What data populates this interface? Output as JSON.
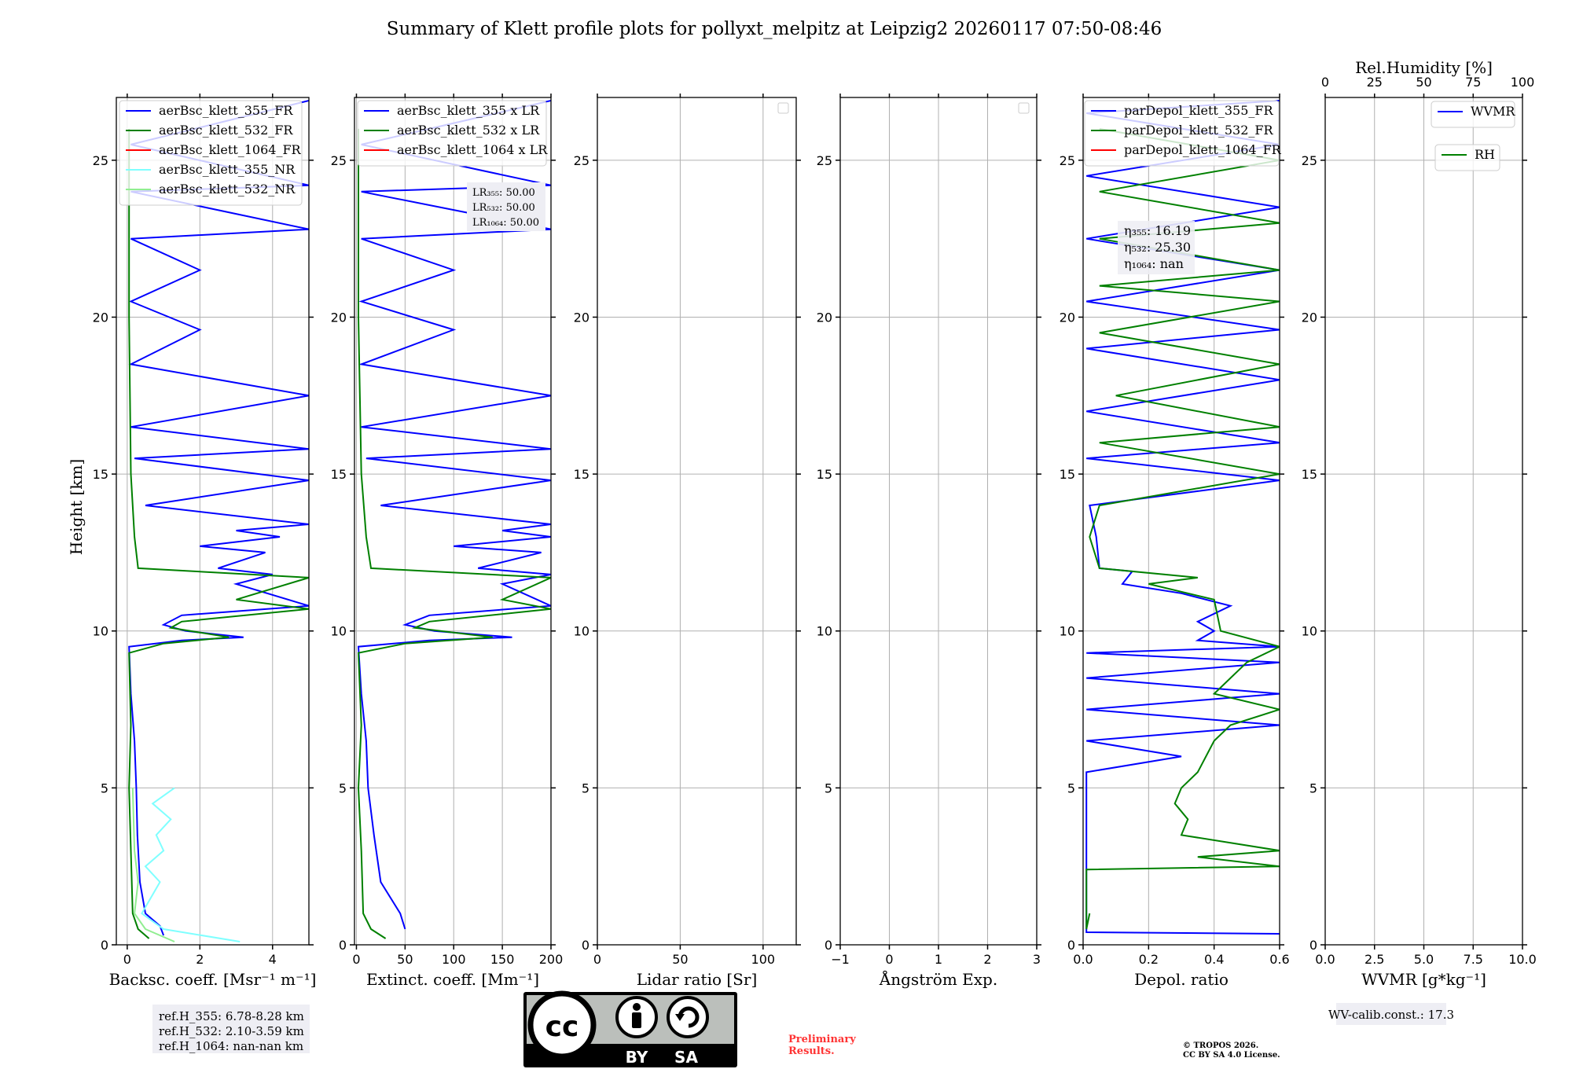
{
  "title": "Summary of Klett profile plots for pollyxt_melpitz at Leipzig2 20260117 07:50-08:46",
  "colors": {
    "blue": "#0000ff",
    "green": "#008000",
    "red": "#ff0000",
    "cyan": "#7fffff",
    "lightgreen": "#90ee90",
    "grid": "#b0b0b0",
    "axis": "#000000"
  },
  "chart_data": [
    {
      "type": "line",
      "name": "backscatter",
      "xlabel": "Backsc. coeff. [Msr⁻¹ m⁻¹]",
      "ylabel": "Height [km]",
      "xlim": [
        -0.3,
        5
      ],
      "ylim": [
        0,
        27
      ],
      "xticks": [
        0,
        2,
        4
      ],
      "xticklabels": [
        "0",
        "2",
        "4"
      ],
      "yticks": [
        0,
        5,
        10,
        15,
        20,
        25
      ],
      "yticklabels": [
        "0",
        "5",
        "10",
        "15",
        "20",
        "25"
      ],
      "legend": [
        "aerBsc_klett_355_FR",
        "aerBsc_klett_532_FR",
        "aerBsc_klett_1064_FR",
        "aerBsc_klett_355_NR",
        "aerBsc_klett_532_NR"
      ],
      "series": [
        {
          "name": "aerBsc_klett_355_FR",
          "color": "blue",
          "points": [
            [
              1.0,
              0.3
            ],
            [
              0.9,
              0.6
            ],
            [
              0.5,
              1.0
            ],
            [
              0.35,
              2.0
            ],
            [
              0.28,
              3.5
            ],
            [
              0.25,
              5.0
            ],
            [
              0.2,
              6.5
            ],
            [
              0.1,
              8.0
            ],
            [
              0.05,
              9.5
            ],
            [
              1.5,
              9.7
            ],
            [
              3.2,
              9.8
            ],
            [
              1.6,
              10.0
            ],
            [
              1.0,
              10.2
            ],
            [
              1.5,
              10.5
            ],
            [
              5,
              10.8
            ],
            [
              3.0,
              11.5
            ],
            [
              4.0,
              11.8
            ],
            [
              2.5,
              12.0
            ],
            [
              3.8,
              12.5
            ],
            [
              2.0,
              12.7
            ],
            [
              4.2,
              13.0
            ],
            [
              3.0,
              13.2
            ],
            [
              5,
              13.4
            ],
            [
              0.5,
              14.0
            ],
            [
              5,
              14.8
            ],
            [
              0.2,
              15.5
            ],
            [
              5,
              15.8
            ],
            [
              0.1,
              16.5
            ],
            [
              5,
              17.5
            ],
            [
              0.1,
              18.5
            ],
            [
              2.0,
              19.6
            ],
            [
              0.1,
              20.5
            ],
            [
              2.0,
              21.5
            ],
            [
              0.1,
              22.5
            ],
            [
              5,
              22.8
            ],
            [
              0.1,
              24.0
            ],
            [
              5,
              24.2
            ],
            [
              0.1,
              25.5
            ],
            [
              5,
              26.9
            ]
          ]
        },
        {
          "name": "aerBsc_klett_532_FR",
          "color": "green",
          "points": [
            [
              0.6,
              0.2
            ],
            [
              0.3,
              0.5
            ],
            [
              0.15,
              1.0
            ],
            [
              0.1,
              3.0
            ],
            [
              0.05,
              5.0
            ],
            [
              0.1,
              7.0
            ],
            [
              0.05,
              9.3
            ],
            [
              1.0,
              9.6
            ],
            [
              2.8,
              9.8
            ],
            [
              1.2,
              10.1
            ],
            [
              1.5,
              10.3
            ],
            [
              5,
              10.7
            ],
            [
              3.0,
              11.0
            ],
            [
              5,
              11.7
            ],
            [
              0.3,
              12.0
            ],
            [
              0.2,
              13.0
            ],
            [
              0.1,
              15.0
            ],
            [
              0.05,
              20.0
            ],
            [
              0.05,
              26.0
            ]
          ]
        },
        {
          "name": "aerBsc_klett_355_NR",
          "color": "cyan",
          "points": [
            [
              3.1,
              0.1
            ],
            [
              1.0,
              0.5
            ],
            [
              0.4,
              1.0
            ],
            [
              0.9,
              2.0
            ],
            [
              0.5,
              2.5
            ],
            [
              1.0,
              3.0
            ],
            [
              0.8,
              3.5
            ],
            [
              1.2,
              4.0
            ],
            [
              0.7,
              4.5
            ],
            [
              1.3,
              5.0
            ]
          ]
        },
        {
          "name": "aerBsc_klett_532_NR",
          "color": "lightgreen",
          "points": [
            [
              1.3,
              0.1
            ],
            [
              0.5,
              0.5
            ],
            [
              0.2,
              1.0
            ],
            [
              0.3,
              2.0
            ],
            [
              0.2,
              3.0
            ],
            [
              0.15,
              5.0
            ]
          ]
        }
      ],
      "annotation": [
        "ref.H_355: 6.78-8.28 km",
        "ref.H_532: 2.10-3.59 km",
        "ref.H_1064: nan-nan km"
      ]
    },
    {
      "type": "line",
      "name": "extinction",
      "xlabel": "Extinct. coeff. [Mm⁻¹]",
      "xlim": [
        -2,
        200
      ],
      "ylim": [
        0,
        27
      ],
      "xticks": [
        0,
        50,
        100,
        150,
        200
      ],
      "xticklabels": [
        "0",
        "50",
        "100",
        "150",
        "200"
      ],
      "yticks": [
        0,
        5,
        10,
        15,
        20,
        25
      ],
      "yticklabels": [
        "0",
        "5",
        "10",
        "15",
        "20",
        "25"
      ],
      "legend": [
        "aerBsc_klett_355 x LR",
        "aerBsc_klett_532 x LR",
        "aerBsc_klett_1064 x LR"
      ],
      "lr_lines": [
        "LR₃₅₅: 50.00",
        "LR₅₃₂: 50.00",
        "LR₁₀₆₄: 50.00"
      ],
      "series": [
        {
          "name": "aerBsc_klett_355 x LR",
          "color": "blue",
          "points": [
            [
              50,
              0.5
            ],
            [
              45,
              1.0
            ],
            [
              25,
              2.0
            ],
            [
              18,
              3.5
            ],
            [
              12,
              5.0
            ],
            [
              10,
              6.5
            ],
            [
              5,
              8.0
            ],
            [
              2,
              9.5
            ],
            [
              75,
              9.7
            ],
            [
              160,
              9.8
            ],
            [
              80,
              10.0
            ],
            [
              50,
              10.2
            ],
            [
              75,
              10.5
            ],
            [
              200,
              10.8
            ],
            [
              150,
              11.5
            ],
            [
              200,
              11.8
            ],
            [
              125,
              12.0
            ],
            [
              190,
              12.5
            ],
            [
              100,
              12.7
            ],
            [
              200,
              13.0
            ],
            [
              150,
              13.2
            ],
            [
              200,
              13.4
            ],
            [
              25,
              14.0
            ],
            [
              200,
              14.8
            ],
            [
              10,
              15.5
            ],
            [
              200,
              15.8
            ],
            [
              5,
              16.5
            ],
            [
              200,
              17.5
            ],
            [
              5,
              18.5
            ],
            [
              100,
              19.6
            ],
            [
              5,
              20.5
            ],
            [
              100,
              21.5
            ],
            [
              5,
              22.5
            ],
            [
              200,
              22.8
            ],
            [
              5,
              24.0
            ],
            [
              200,
              24.2
            ],
            [
              5,
              25.5
            ],
            [
              200,
              26.9
            ]
          ]
        },
        {
          "name": "aerBsc_klett_532 x LR",
          "color": "green",
          "points": [
            [
              30,
              0.2
            ],
            [
              15,
              0.5
            ],
            [
              7,
              1.0
            ],
            [
              5,
              3.0
            ],
            [
              2,
              5.0
            ],
            [
              5,
              7.0
            ],
            [
              2,
              9.3
            ],
            [
              50,
              9.6
            ],
            [
              140,
              9.8
            ],
            [
              60,
              10.1
            ],
            [
              75,
              10.3
            ],
            [
              200,
              10.7
            ],
            [
              150,
              11.0
            ],
            [
              200,
              11.7
            ],
            [
              15,
              12.0
            ],
            [
              10,
              13.0
            ],
            [
              5,
              15.0
            ],
            [
              2,
              20.0
            ],
            [
              2,
              26.0
            ]
          ]
        }
      ]
    },
    {
      "type": "line",
      "name": "lidar-ratio",
      "xlabel": "Lidar ratio [Sr]",
      "xlim": [
        0,
        120
      ],
      "ylim": [
        0,
        27
      ],
      "xticks": [
        0,
        50,
        100
      ],
      "xticklabels": [
        "0",
        "50",
        "100"
      ],
      "yticks": [
        0,
        5,
        10,
        15,
        20,
        25
      ],
      "yticklabels": [
        "0",
        "5",
        "10",
        "15",
        "20",
        "25"
      ],
      "series": []
    },
    {
      "type": "line",
      "name": "angstroem",
      "xlabel": "Ångström Exp.",
      "xlim": [
        -1,
        3
      ],
      "ylim": [
        0,
        27
      ],
      "xticks": [
        -1,
        0,
        1,
        2,
        3
      ],
      "xticklabels": [
        "−1",
        "0",
        "1",
        "2",
        "3"
      ],
      "yticks": [
        0,
        5,
        10,
        15,
        20,
        25
      ],
      "yticklabels": [
        "0",
        "5",
        "10",
        "15",
        "20",
        "25"
      ],
      "series": []
    },
    {
      "type": "line",
      "name": "depolarization",
      "xlabel": "Depol. ratio",
      "xlim": [
        0,
        0.6
      ],
      "ylim": [
        0,
        27
      ],
      "xticks": [
        0,
        0.2,
        0.4,
        0.6
      ],
      "xticklabels": [
        "0.0",
        "0.2",
        "0.4",
        "0.6"
      ],
      "yticks": [
        0,
        5,
        10,
        15,
        20,
        25
      ],
      "yticklabels": [
        "0",
        "5",
        "10",
        "15",
        "20",
        "25"
      ],
      "legend": [
        "parDepol_klett_355_FR",
        "parDepol_klett_532_FR",
        "parDepol_klett_1064_FR"
      ],
      "eta_lines": [
        "η₃₅₅: 16.19",
        "η₅₃₂: 25.30",
        "η₁₀₆₄: nan"
      ],
      "series": [
        {
          "name": "parDepol_klett_355_FR",
          "color": "blue",
          "points": [
            [
              0.6,
              0.35
            ],
            [
              0.01,
              0.4
            ],
            [
              0.01,
              5.5
            ],
            [
              0.3,
              6.0
            ],
            [
              0.01,
              6.5
            ],
            [
              0.6,
              7.0
            ],
            [
              0.01,
              7.5
            ],
            [
              0.6,
              8.0
            ],
            [
              0.01,
              8.5
            ],
            [
              0.6,
              9.0
            ],
            [
              0.01,
              9.3
            ],
            [
              0.6,
              9.5
            ],
            [
              0.35,
              9.7
            ],
            [
              0.4,
              10.0
            ],
            [
              0.35,
              10.3
            ],
            [
              0.45,
              10.8
            ],
            [
              0.3,
              11.2
            ],
            [
              0.12,
              11.5
            ],
            [
              0.15,
              11.9
            ],
            [
              0.05,
              12.0
            ],
            [
              0.04,
              13.0
            ],
            [
              0.02,
              14.0
            ],
            [
              0.6,
              14.8
            ],
            [
              0.01,
              15.5
            ],
            [
              0.6,
              16.0
            ],
            [
              0.01,
              17.0
            ],
            [
              0.6,
              18.0
            ],
            [
              0.01,
              19.0
            ],
            [
              0.6,
              19.6
            ],
            [
              0.01,
              20.5
            ],
            [
              0.6,
              21.5
            ],
            [
              0.01,
              22.5
            ],
            [
              0.6,
              23.5
            ],
            [
              0.01,
              24.5
            ],
            [
              0.6,
              25.5
            ],
            [
              0.01,
              26.5
            ],
            [
              0.6,
              26.9
            ]
          ]
        },
        {
          "name": "parDepol_klett_532_FR",
          "color": "green",
          "points": [
            [
              0.02,
              1.0
            ],
            [
              0.01,
              0.5
            ],
            [
              0.01,
              2.4
            ],
            [
              0.6,
              2.5
            ],
            [
              0.35,
              2.8
            ],
            [
              0.6,
              3.0
            ],
            [
              0.3,
              3.5
            ],
            [
              0.32,
              4.0
            ],
            [
              0.28,
              4.5
            ],
            [
              0.3,
              5.0
            ],
            [
              0.35,
              5.5
            ],
            [
              0.4,
              6.5
            ],
            [
              0.45,
              7.0
            ],
            [
              0.6,
              7.5
            ],
            [
              0.4,
              8.0
            ],
            [
              0.45,
              8.5
            ],
            [
              0.5,
              9.0
            ],
            [
              0.6,
              9.5
            ],
            [
              0.42,
              10.0
            ],
            [
              0.4,
              11.0
            ],
            [
              0.2,
              11.5
            ],
            [
              0.35,
              11.7
            ],
            [
              0.05,
              12.0
            ],
            [
              0.02,
              13.0
            ],
            [
              0.05,
              14.0
            ],
            [
              0.6,
              15.0
            ],
            [
              0.05,
              16.0
            ],
            [
              0.6,
              16.5
            ],
            [
              0.1,
              17.5
            ],
            [
              0.6,
              18.5
            ],
            [
              0.05,
              19.5
            ],
            [
              0.6,
              20.5
            ],
            [
              0.05,
              21.0
            ],
            [
              0.6,
              21.5
            ],
            [
              0.05,
              22.5
            ],
            [
              0.6,
              23.0
            ],
            [
              0.05,
              24.0
            ],
            [
              0.6,
              25.0
            ],
            [
              0.05,
              26.0
            ]
          ]
        }
      ]
    },
    {
      "type": "line",
      "name": "water-vapor",
      "xlabel": "WVMR [g*kg⁻¹]",
      "xlim": [
        0,
        10
      ],
      "ylim": [
        0,
        27
      ],
      "xticks": [
        0,
        2.5,
        5,
        7.5,
        10
      ],
      "xticklabels": [
        "0.0",
        "2.5",
        "5.0",
        "7.5",
        "10.0"
      ],
      "top_xlabel": "Rel.Humidity [%]",
      "top_xticks": [
        0,
        25,
        50,
        75,
        100
      ],
      "top_xticklabels": [
        "0",
        "25",
        "50",
        "75",
        "100"
      ],
      "yticks": [
        0,
        5,
        10,
        15,
        20,
        25
      ],
      "yticklabels": [
        "0",
        "5",
        "10",
        "15",
        "20",
        "25"
      ],
      "legend_wvmr": "WVMR",
      "legend_rh": "RH",
      "calib": "WV-calib.const.: 17.3",
      "series": []
    }
  ],
  "license_badge": {
    "cc": "cc",
    "by": "BY",
    "sa": "SA"
  },
  "preliminary": [
    "Preliminary",
    "Results."
  ],
  "copyright": [
    "© TROPOS 2026.",
    "CC BY SA 4.0 License."
  ]
}
